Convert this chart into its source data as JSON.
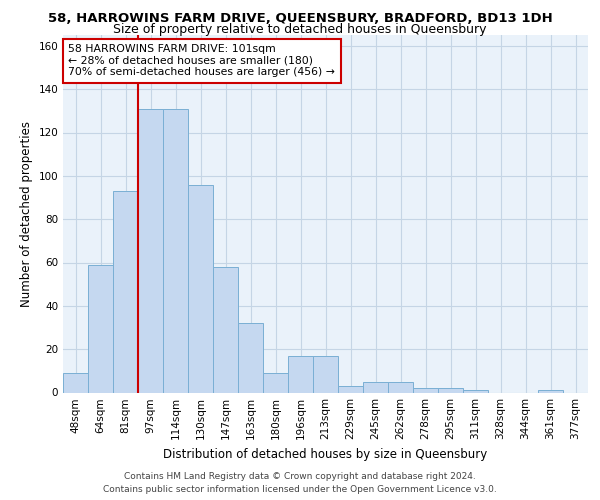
{
  "title": "58, HARROWINS FARM DRIVE, QUEENSBURY, BRADFORD, BD13 1DH",
  "subtitle": "Size of property relative to detached houses in Queensbury",
  "xlabel": "Distribution of detached houses by size in Queensbury",
  "ylabel": "Number of detached properties",
  "categories": [
    "48sqm",
    "64sqm",
    "81sqm",
    "97sqm",
    "114sqm",
    "130sqm",
    "147sqm",
    "163sqm",
    "180sqm",
    "196sqm",
    "213sqm",
    "229sqm",
    "245sqm",
    "262sqm",
    "278sqm",
    "295sqm",
    "311sqm",
    "328sqm",
    "344sqm",
    "361sqm",
    "377sqm"
  ],
  "values": [
    9,
    59,
    93,
    131,
    131,
    96,
    58,
    32,
    9,
    17,
    17,
    3,
    5,
    5,
    2,
    2,
    1,
    0,
    0,
    1,
    0
  ],
  "bar_color": "#c5d8f0",
  "bar_edge_color": "#7aafd4",
  "vline_x_index": 3,
  "vline_color": "#cc0000",
  "annotation_line1": "58 HARROWINS FARM DRIVE: 101sqm",
  "annotation_line2": "← 28% of detached houses are smaller (180)",
  "annotation_line3": "70% of semi-detached houses are larger (456) →",
  "annotation_box_color": "#cc0000",
  "ylim": [
    0,
    165
  ],
  "yticks": [
    0,
    20,
    40,
    60,
    80,
    100,
    120,
    140,
    160
  ],
  "grid_color": "#c5d5e5",
  "background_color": "#eaf2fa",
  "footer_line1": "Contains HM Land Registry data © Crown copyright and database right 2024.",
  "footer_line2": "Contains public sector information licensed under the Open Government Licence v3.0.",
  "title_fontsize": 9.5,
  "subtitle_fontsize": 9,
  "xlabel_fontsize": 8.5,
  "ylabel_fontsize": 8.5,
  "tick_fontsize": 7.5,
  "annotation_fontsize": 7.8,
  "footer_fontsize": 6.5
}
